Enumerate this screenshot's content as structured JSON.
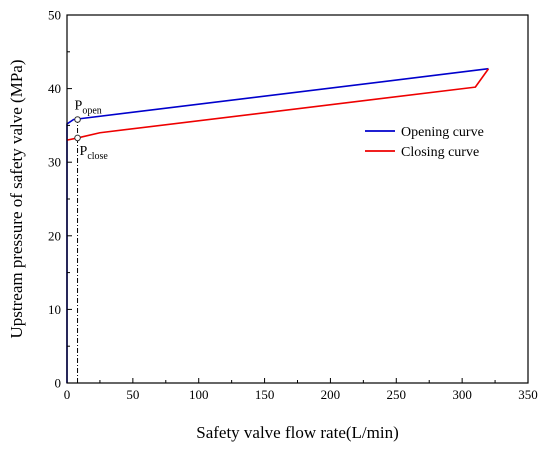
{
  "chart_data": {
    "type": "line",
    "xlabel": "Safety valve flow rate(L/min)",
    "ylabel": "Upstream pressure of safety valve (MPa)",
    "xlim": [
      0,
      350
    ],
    "ylim": [
      0,
      50
    ],
    "x_ticks": [
      0,
      50,
      100,
      150,
      200,
      250,
      300,
      350
    ],
    "y_ticks": [
      0,
      10,
      20,
      30,
      40,
      50
    ],
    "grid": false,
    "legend_position": "right",
    "series": [
      {
        "name": "Opening curve",
        "color": "#0000cc",
        "x": [
          0,
          0,
          5,
          320
        ],
        "y": [
          0,
          35.2,
          35.8,
          42.7
        ]
      },
      {
        "name": "Closing curve",
        "color": "#ee0000",
        "x": [
          320,
          310,
          25,
          8,
          0
        ],
        "y": [
          42.7,
          40.2,
          34.0,
          33.3,
          33.0
        ]
      }
    ],
    "annotations": [
      {
        "label": "P",
        "subscript": "open",
        "x": 8,
        "y": 35.8
      },
      {
        "label": "P",
        "subscript": "close",
        "x": 8,
        "y": 33.3
      }
    ],
    "reference_line": {
      "x": 8,
      "y_from": 0,
      "y_to": 35.8,
      "style": "dash-dot"
    }
  }
}
